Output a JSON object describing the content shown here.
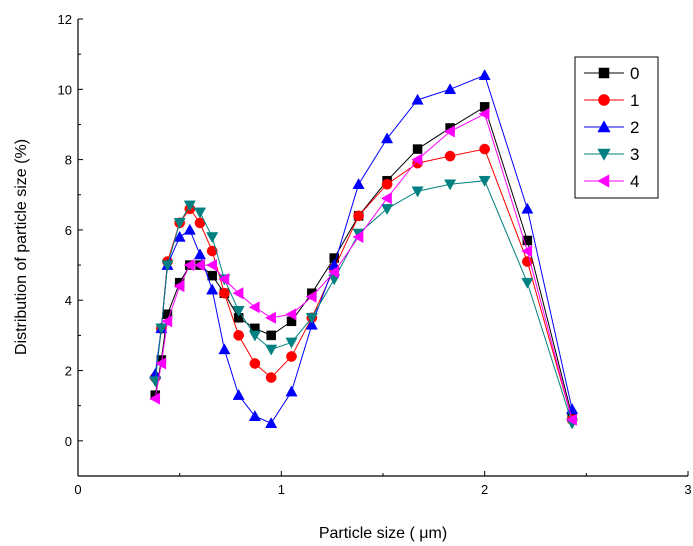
{
  "chart_data": {
    "type": "line",
    "title": "",
    "xlabel": "Particle size ( μm)",
    "ylabel": "Distribution of particle size (%)",
    "xlim": [
      0,
      3
    ],
    "ylim": [
      -1,
      12
    ],
    "xticks": [
      0,
      1,
      2,
      3
    ],
    "yticks": [
      0,
      2,
      4,
      6,
      8,
      10,
      12
    ],
    "xtick_labels": [
      "0",
      "1",
      "2",
      "3"
    ],
    "ytick_labels": [
      "0",
      "2",
      "4",
      "6",
      "8",
      "10",
      "12"
    ],
    "grid": false,
    "legend_position": "top-right",
    "x": [
      0.38,
      0.41,
      0.44,
      0.5,
      0.55,
      0.6,
      0.66,
      0.72,
      0.79,
      0.87,
      0.95,
      1.05,
      1.15,
      1.26,
      1.38,
      1.52,
      1.67,
      1.83,
      2.0,
      2.21,
      2.43
    ],
    "series": [
      {
        "name": "0",
        "color": "#000000",
        "marker": "square",
        "values": [
          1.3,
          2.3,
          3.6,
          4.5,
          5.0,
          5.0,
          4.7,
          4.2,
          3.5,
          3.2,
          3.0,
          3.4,
          4.2,
          5.2,
          6.4,
          7.4,
          8.3,
          8.9,
          9.5,
          5.7,
          0.7
        ]
      },
      {
        "name": "1",
        "color": "#ff0000",
        "marker": "circle",
        "values": [
          1.8,
          3.2,
          5.1,
          6.2,
          6.6,
          6.2,
          5.4,
          4.2,
          3.0,
          2.2,
          1.8,
          2.4,
          3.5,
          4.9,
          6.4,
          7.3,
          7.9,
          8.1,
          8.3,
          5.1,
          0.6
        ]
      },
      {
        "name": "2",
        "color": "#0000ff",
        "marker": "triangle-up",
        "values": [
          1.9,
          3.2,
          5.0,
          5.8,
          6.0,
          5.3,
          4.3,
          2.6,
          1.3,
          0.7,
          0.5,
          1.4,
          3.3,
          5.0,
          7.3,
          8.6,
          9.7,
          10.0,
          10.4,
          6.6,
          0.9
        ]
      },
      {
        "name": "3",
        "color": "#008080",
        "marker": "triangle-down",
        "values": [
          1.7,
          3.2,
          5.0,
          6.2,
          6.7,
          6.5,
          5.8,
          4.6,
          3.7,
          3.0,
          2.6,
          2.8,
          3.5,
          4.6,
          5.9,
          6.6,
          7.1,
          7.3,
          7.4,
          4.5,
          0.5
        ]
      },
      {
        "name": "4",
        "color": "#ff00ff",
        "marker": "triangle-left",
        "values": [
          1.2,
          2.2,
          3.4,
          4.4,
          5.0,
          5.0,
          5.0,
          4.6,
          4.2,
          3.8,
          3.5,
          3.6,
          4.1,
          4.8,
          5.8,
          6.9,
          8.0,
          8.8,
          9.3,
          5.4,
          0.6
        ]
      }
    ]
  }
}
